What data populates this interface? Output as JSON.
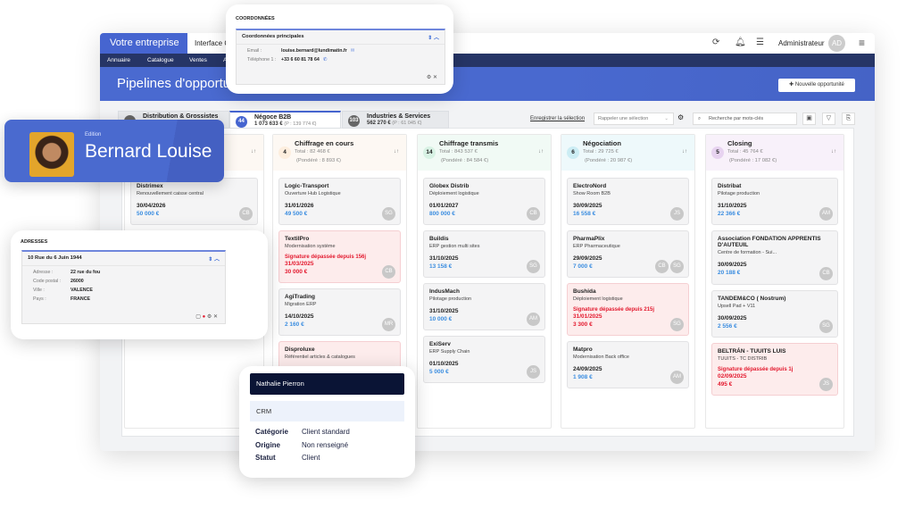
{
  "header": {
    "brand": "Votre entreprise",
    "interface": "Interface C",
    "user": "Administrateur",
    "avatar": "AD"
  },
  "nav": [
    "Annuaire",
    "Catalogue",
    "Ventes",
    "A"
  ],
  "page": {
    "title": "Pipelines d'opportunités",
    "new_button": "Nouvelle opportunité"
  },
  "tabs": [
    {
      "name": "Distribution & Grossistes",
      "count": "",
      "total": "",
      "pond": ""
    },
    {
      "name": "Négoce B2B",
      "count": "44",
      "total": "1 073 633 €",
      "pond": "(P : 139 774 €)"
    },
    {
      "name": "Industries & Services",
      "count": "103",
      "total": "562 270 €",
      "pond": "(P : 61 045 €)"
    }
  ],
  "toolbar": {
    "save": "Enregistrer la sélection",
    "recall": "Rappeler une sélection",
    "search_placeholder": "Recherche par mots-clés"
  },
  "colors": {
    "accent": "#4665d0",
    "navy": "#263566",
    "late": "#e3192e",
    "amount": "#3b8de0"
  },
  "columns": [
    {
      "title": "",
      "count": "",
      "total": "",
      "pond": "",
      "bg": "#fdf8f3",
      "badge": "#fdeede",
      "cards": [
        {
          "company": "Distrimex",
          "desc": "Renouvellement caisse central",
          "date": "30/04/2026",
          "amount": "50 000 €",
          "owners": [
            "CB"
          ]
        }
      ]
    },
    {
      "title": "Chiffrage en cours",
      "count": "4",
      "total": "Total : 82 468 €",
      "pond": "(Pondéré : 8 893 €)",
      "bg": "#fdf8f3",
      "badge": "#fdeede",
      "cards": [
        {
          "company": "Logic-Transport",
          "desc": "Ouverture Hub Logistique",
          "date": "31/01/2026",
          "amount": "49 500 €",
          "owners": [
            "SG"
          ]
        },
        {
          "company": "TextilPro",
          "desc": "Modernisation système",
          "warning": "Signature dépassée depuis 156j",
          "date": "31/03/2025",
          "amount": "30 000 €",
          "owners": [
            "CB"
          ],
          "late": true
        },
        {
          "company": "AgiTrading",
          "desc": "Migration ERP",
          "date": "14/10/2025",
          "amount": "2 160 €",
          "owners": [
            "MR"
          ]
        },
        {
          "company": "Disproluxe",
          "desc": "Référentiel articles & catalogues",
          "late": true,
          "owners": []
        }
      ]
    },
    {
      "title": "Chiffrage transmis",
      "count": "14",
      "total": "Total : 843 537 €",
      "pond": "(Pondéré : 84 584 €)",
      "bg": "#f1faf5",
      "badge": "#d8f2e4",
      "cards": [
        {
          "company": "Globex Distrib",
          "desc": "Déploiement logistique",
          "date": "01/01/2027",
          "amount": "800 000 €",
          "owners": [
            "CB"
          ]
        },
        {
          "company": "Buildis",
          "desc": "ERP gestion multi sites",
          "date": "31/10/2025",
          "amount": "13 158 €",
          "owners": [
            "SG"
          ]
        },
        {
          "company": "IndusMach",
          "desc": "Pilotage production",
          "date": "31/10/2025",
          "amount": "10 000 €",
          "owners": [
            "AM"
          ]
        },
        {
          "company": "ExiServ",
          "desc": "ERP Supply Chain",
          "date": "01/10/2025",
          "amount": "5 000 €",
          "owners": [
            "JS"
          ]
        }
      ]
    },
    {
      "title": "Négociation",
      "count": "6",
      "total": "Total : 29 725 €",
      "pond": "(Pondéré : 20 987 €)",
      "bg": "#eef9fb",
      "badge": "#ccedf4",
      "cards": [
        {
          "company": "ElectroNord",
          "desc": "Show Room B2B",
          "date": "30/09/2025",
          "amount": "16 558 €",
          "owners": [
            "JS"
          ]
        },
        {
          "company": "PharmaPlix",
          "desc": "ERP Pharmaceutique",
          "date": "29/09/2025",
          "amount": "7 000 €",
          "owners": [
            "CB",
            "SG"
          ]
        },
        {
          "company": "Bushida",
          "desc": "Déploiement logistique",
          "warning": "Signature dépassée depuis 215j",
          "date": "31/01/2025",
          "amount": "3 300 €",
          "owners": [
            "SG"
          ],
          "late": true
        },
        {
          "company": "Matpro",
          "desc": "Modernisation Back office",
          "date": "24/09/2025",
          "amount": "1 908 €",
          "owners": [
            "AM"
          ]
        }
      ]
    },
    {
      "title": "Closing",
      "count": "5",
      "total": "Total : 45 764 €",
      "pond": "(Pondéré : 17 082 €)",
      "bg": "#f8f1fa",
      "badge": "#e7d3f0",
      "cards": [
        {
          "company": "Distribat",
          "desc": "Pilotage production",
          "date": "31/10/2025",
          "amount": "22 366 €",
          "owners": [
            "AM"
          ]
        },
        {
          "company": "Association FONDATION APPRENTIS D'AUTEUIL",
          "desc": "Centre de formation - Sui...",
          "date": "30/09/2025",
          "amount": "20 188 €",
          "owners": [
            "CB"
          ]
        },
        {
          "company": "TANDEM&CO ( Nostrum)",
          "desc": "Upsell Pad + V11",
          "date": "30/09/2025",
          "amount": "2 556 €",
          "owners": [
            "SG"
          ]
        },
        {
          "company": "BELTRÁN - TUUITS LUIS",
          "desc": "TUUITS - TC DISTRIB",
          "warning": "Signature dépassée depuis 1j",
          "date": "02/09/2025",
          "amount": "495 €",
          "owners": [
            "JS"
          ],
          "late": true
        }
      ]
    }
  ],
  "coord": {
    "heading": "COORDONNÉES",
    "panel": "Coordonnées principales",
    "email_label": "Email :",
    "email": "louise.bernard@lundimatin.fr",
    "phone_label": "Téléphone 1 :",
    "phone": "+33 6 60 81 78 64"
  },
  "edit": {
    "label": "Edition",
    "name": "Bernard Louise"
  },
  "addr": {
    "heading": "ADRESSES",
    "panel": "10 Rue du 6 Juin 1944",
    "rows": [
      [
        "Adresse :",
        "22 rue du fou"
      ],
      [
        "Code postal :",
        "26000"
      ],
      [
        "Ville :",
        "VALENCE"
      ],
      [
        "Pays :",
        "FRANCE"
      ]
    ]
  },
  "contact": {
    "name": "Nathalie Pierron",
    "section": "CRM",
    "rows": [
      [
        "Catégorie",
        "Client standard"
      ],
      [
        "Origine",
        "Non renseigné"
      ],
      [
        "Statut",
        "Client"
      ]
    ]
  }
}
